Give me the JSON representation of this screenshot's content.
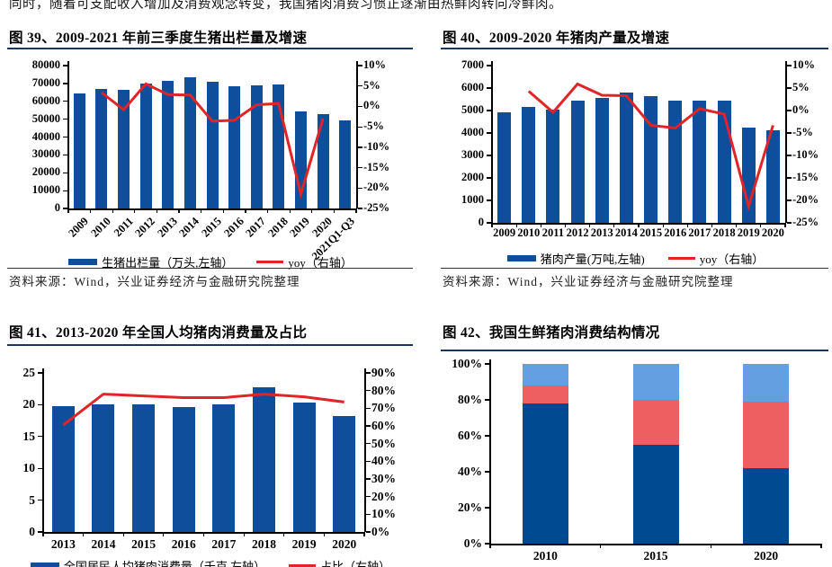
{
  "intro_text": "同时，随着可支配收入增加及消费观念转变，我国猪肉消费习惯正逐渐由热鲜肉转向冷鲜肉。",
  "colors": {
    "bar_blue": "#0f4e9b",
    "line_red": "#e02427",
    "stack_dark_blue": "#004a91",
    "stack_coral": "#ee5f62",
    "stack_light_blue": "#64a0e1",
    "rule_navy": "#17375e"
  },
  "chart_data": [
    {
      "id": "fig39",
      "type": "bar",
      "title": "图 39、2009-2021 年前三季度生猪出栏量及增速",
      "categories": [
        "2009",
        "2010",
        "2011",
        "2012",
        "2013",
        "2014",
        "2015",
        "2016",
        "2017",
        "2018",
        "2019",
        "2020",
        "2021Q1-Q3"
      ],
      "series": [
        {
          "name": "生猪出栏量（万头,左轴）",
          "type": "bar",
          "axis": "left",
          "values": [
            64500,
            66700,
            66200,
            69800,
            71500,
            73500,
            70800,
            68500,
            68900,
            69400,
            54400,
            52700,
            49200
          ]
        },
        {
          "name": "yoy（右轴）",
          "type": "line",
          "axis": "right",
          "values": [
            null,
            3.4,
            -0.8,
            5.5,
            2.9,
            2.8,
            -3.6,
            -3.4,
            0.4,
            0.7,
            -21.5,
            -3.0,
            null
          ]
        }
      ],
      "left_axis": {
        "min": 0,
        "max": 80000,
        "step": 10000
      },
      "right_axis": {
        "min": -25,
        "max": 10,
        "step": 5,
        "suffix": "%"
      },
      "legend": [
        "生猪出栏量（万头,左轴）",
        "yoy（右轴）"
      ],
      "source": "资料来源：Wind，兴业证券经济与金融研究院整理"
    },
    {
      "id": "fig40",
      "type": "bar",
      "title": "图 40、2009-2020 年猪肉产量及增速",
      "categories": [
        "2009",
        "2010",
        "2011",
        "2012",
        "2013",
        "2014",
        "2015",
        "2016",
        "2017",
        "2018",
        "2019",
        "2020"
      ],
      "series": [
        {
          "name": "猪肉产量(万吨,左轴)",
          "type": "bar",
          "axis": "left",
          "values": [
            4930,
            5150,
            5060,
            5450,
            5560,
            5790,
            5650,
            5450,
            5460,
            5430,
            4260,
            4115
          ]
        },
        {
          "name": "yoy（右轴）",
          "type": "line",
          "axis": "right",
          "values": [
            null,
            4.3,
            -0.4,
            5.9,
            3.4,
            3.3,
            -3.3,
            -3.9,
            0.4,
            -0.8,
            -21.3,
            -3.3
          ]
        }
      ],
      "left_axis": {
        "min": 0,
        "max": 7000,
        "step": 1000
      },
      "right_axis": {
        "min": -25,
        "max": 10,
        "step": 5,
        "suffix": "%"
      },
      "legend": [
        "猪肉产量(万吨,左轴)",
        "yoy（右轴）"
      ],
      "source": "资料来源：Wind，兴业证券经济与金融研究院整理"
    },
    {
      "id": "fig41",
      "type": "bar",
      "title": "图 41、2013-2020 年全国人均猪肉消费量及占比",
      "categories": [
        "2013",
        "2014",
        "2015",
        "2016",
        "2017",
        "2018",
        "2019",
        "2020"
      ],
      "series": [
        {
          "name": "全国居民人均猪肉消费量（千克,左轴）",
          "type": "bar",
          "axis": "left",
          "values": [
            19.8,
            20.0,
            20.1,
            19.6,
            20.1,
            22.8,
            20.3,
            18.2
          ]
        },
        {
          "name": "占比（右轴）",
          "type": "line",
          "axis": "right",
          "values": [
            60.5,
            78,
            77,
            76,
            76,
            78,
            76.5,
            73.5
          ]
        }
      ],
      "left_axis": {
        "min": 0,
        "max": 25,
        "step": 5
      },
      "right_axis": {
        "min": 0,
        "max": 90,
        "step": 10,
        "suffix": "%"
      },
      "legend": [
        "全国居民人均猪肉消费量（千克,左轴）",
        "占比（右轴）"
      ]
    },
    {
      "id": "fig42",
      "type": "stacked_bar",
      "title": "图 42、我国生鲜猪肉消费结构情况",
      "categories": [
        "2010",
        "2015",
        "2020"
      ],
      "series": [
        {
          "color": "#004a91",
          "values": [
            78,
            55,
            42
          ]
        },
        {
          "color": "#ee5f62",
          "values": [
            10,
            25,
            37
          ]
        },
        {
          "color": "#64a0e1",
          "values": [
            12,
            20,
            21
          ]
        }
      ],
      "left_axis": {
        "min": 0,
        "max": 100,
        "step": 20,
        "suffix": "%"
      }
    }
  ]
}
